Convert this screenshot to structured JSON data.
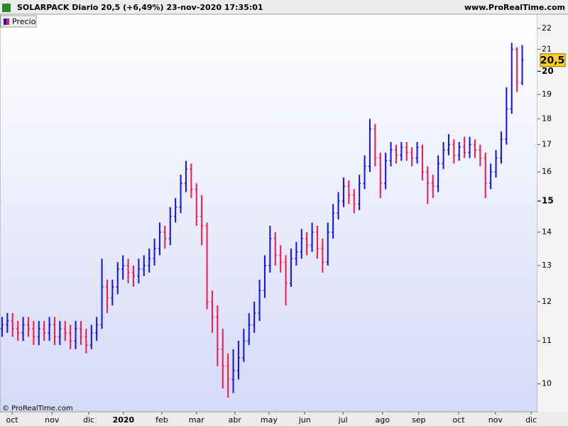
{
  "chart_data": {
    "type": "ohlc",
    "title": "SOLARPACK Diario 20,5 (+6,49%) 23-nov-2020 17:35:01",
    "source_header": "www.ProRealTime.com",
    "copyright": "© ProRealTime.com",
    "legend": "Precio",
    "log_scale": true,
    "grid": false,
    "up_color": "#1212e8",
    "down_color": "#f0184e",
    "last_price": {
      "value": 20.5,
      "label": "20,5"
    },
    "ylim": [
      9.4,
      22.7
    ],
    "yticks": [
      10,
      11,
      12,
      13,
      14,
      15,
      16,
      17,
      18,
      19,
      20,
      21,
      22
    ],
    "bold_yticks": [
      15,
      20
    ],
    "xlim": [
      -0.4,
      101.9
    ],
    "xticks": [
      {
        "value": 1.9,
        "label": "oct"
      },
      {
        "value": 9.5,
        "label": "nov"
      },
      {
        "value": 16.5,
        "label": "dic"
      },
      {
        "value": 23.1,
        "label": "2020"
      },
      {
        "value": 30.4,
        "label": "feb"
      },
      {
        "value": 37.0,
        "label": "mar"
      },
      {
        "value": 44.3,
        "label": "abr"
      },
      {
        "value": 50.8,
        "label": "may"
      },
      {
        "value": 57.6,
        "label": "jun"
      },
      {
        "value": 64.9,
        "label": "jul"
      },
      {
        "value": 72.4,
        "label": "ago"
      },
      {
        "value": 79.3,
        "label": "sep"
      },
      {
        "value": 86.9,
        "label": "oct"
      },
      {
        "value": 93.9,
        "label": "nov"
      },
      {
        "value": 100.7,
        "label": "dic"
      }
    ],
    "open": [
      11.3,
      11.4,
      11.5,
      11.3,
      11.2,
      11.4,
      11.3,
      11.1,
      11.3,
      11.2,
      11.4,
      11.1,
      11.3,
      11.2,
      11.0,
      11.3,
      11.1,
      10.9,
      11.2,
      11.4,
      12.4,
      12.1,
      12.4,
      12.9,
      13.0,
      12.8,
      12.7,
      12.9,
      13.0,
      13.2,
      13.5,
      14.0,
      13.8,
      14.5,
      14.8,
      15.6,
      16.1,
      15.4,
      14.5,
      14.2,
      12.0,
      11.6,
      10.8,
      10.4,
      10.1,
      10.3,
      10.6,
      11.0,
      11.4,
      11.7,
      12.3,
      13.0,
      13.8,
      13.3,
      13.1,
      12.5,
      13.2,
      13.4,
      13.8,
      13.6,
      14.0,
      13.5,
      13.1,
      14.0,
      14.6,
      15.0,
      15.5,
      15.2,
      14.9,
      15.6,
      16.2,
      17.6,
      16.5,
      15.6,
      16.4,
      16.8,
      16.6,
      16.9,
      16.7,
      16.5,
      16.9,
      16.0,
      15.6,
      15.5,
      16.3,
      16.8,
      17.0,
      16.6,
      16.9,
      16.7,
      17.0,
      16.8,
      16.5,
      15.6,
      16.0,
      16.5,
      17.2,
      18.4,
      21.0,
      19.5
    ],
    "high": [
      11.6,
      11.7,
      11.7,
      11.5,
      11.6,
      11.6,
      11.5,
      11.5,
      11.5,
      11.6,
      11.6,
      11.5,
      11.5,
      11.4,
      11.5,
      11.5,
      11.3,
      11.4,
      11.6,
      13.2,
      12.6,
      12.6,
      13.1,
      13.3,
      13.2,
      13.0,
      13.2,
      13.3,
      13.5,
      13.8,
      14.3,
      14.2,
      14.8,
      15.1,
      15.9,
      16.4,
      16.3,
      15.6,
      15.2,
      14.3,
      12.3,
      11.9,
      11.3,
      10.7,
      10.8,
      11.0,
      11.3,
      11.7,
      12.0,
      12.6,
      13.3,
      14.2,
      14.0,
      13.6,
      13.3,
      13.5,
      13.7,
      14.1,
      14.0,
      14.3,
      14.2,
      13.8,
      14.3,
      14.9,
      15.3,
      15.8,
      15.7,
      15.4,
      15.9,
      16.6,
      18.0,
      17.8,
      16.7,
      16.7,
      17.1,
      17.0,
      17.1,
      17.1,
      16.9,
      17.1,
      17.0,
      16.2,
      15.9,
      16.6,
      17.1,
      17.4,
      17.2,
      17.1,
      17.3,
      17.3,
      17.2,
      17.0,
      16.7,
      16.3,
      16.8,
      17.5,
      19.3,
      21.3,
      21.1,
      21.2
    ],
    "low": [
      11.1,
      11.2,
      11.1,
      11.0,
      11.0,
      11.1,
      10.9,
      10.9,
      11.0,
      11.0,
      10.9,
      10.9,
      11.0,
      10.8,
      10.8,
      10.9,
      10.7,
      10.8,
      11.0,
      11.3,
      11.7,
      11.9,
      12.2,
      12.6,
      12.5,
      12.4,
      12.5,
      12.7,
      12.8,
      13.0,
      13.3,
      13.5,
      13.6,
      14.3,
      14.6,
      15.3,
      15.1,
      14.2,
      13.6,
      11.8,
      11.2,
      10.4,
      9.9,
      9.7,
      9.8,
      10.1,
      10.5,
      10.9,
      11.2,
      11.5,
      12.1,
      12.8,
      13.0,
      12.8,
      11.9,
      12.4,
      13.0,
      13.2,
      13.3,
      13.4,
      13.2,
      12.8,
      13.0,
      13.8,
      14.4,
      14.8,
      14.9,
      14.6,
      14.7,
      15.4,
      16.0,
      16.2,
      15.1,
      15.4,
      16.2,
      16.3,
      16.4,
      16.4,
      16.2,
      16.3,
      15.7,
      14.9,
      15.1,
      15.3,
      16.1,
      16.6,
      16.3,
      16.4,
      16.5,
      16.5,
      16.5,
      16.2,
      15.1,
      15.4,
      15.8,
      16.3,
      17.0,
      18.2,
      19.1,
      19.4
    ],
    "close": [
      11.4,
      11.5,
      11.3,
      11.2,
      11.4,
      11.3,
      11.1,
      11.3,
      11.2,
      11.4,
      11.1,
      11.3,
      11.2,
      11.0,
      11.3,
      11.1,
      10.9,
      11.2,
      11.4,
      12.4,
      12.1,
      12.4,
      12.9,
      13.0,
      12.8,
      12.7,
      12.9,
      13.0,
      13.2,
      13.5,
      14.0,
      13.8,
      14.5,
      14.8,
      15.6,
      16.1,
      15.4,
      14.5,
      14.2,
      12.0,
      11.6,
      10.8,
      10.4,
      10.1,
      10.3,
      10.6,
      11.0,
      11.4,
      11.7,
      12.3,
      13.0,
      13.8,
      13.3,
      13.1,
      12.5,
      13.2,
      13.4,
      13.8,
      13.6,
      14.0,
      13.5,
      13.1,
      14.0,
      14.6,
      15.0,
      15.5,
      15.2,
      14.9,
      15.6,
      16.2,
      17.6,
      16.5,
      15.6,
      16.4,
      16.8,
      16.6,
      16.9,
      16.7,
      16.5,
      16.9,
      16.0,
      15.6,
      15.5,
      16.3,
      16.8,
      17.0,
      16.6,
      16.9,
      16.7,
      17.0,
      16.8,
      16.5,
      15.6,
      16.0,
      16.5,
      17.2,
      18.4,
      21.0,
      19.5,
      20.5
    ]
  }
}
